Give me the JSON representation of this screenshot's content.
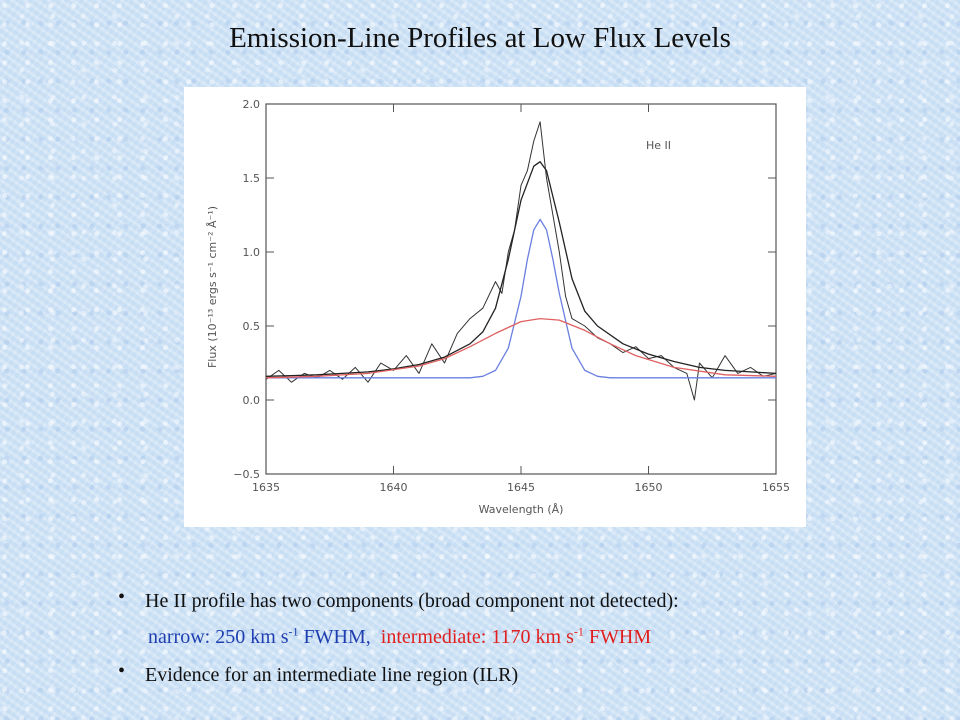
{
  "title": "Emission-Line  Profiles at Low Flux Levels",
  "chart_data": {
    "type": "line",
    "xlabel": "Wavelength (Å)",
    "ylabel": "Flux (10⁻¹³ ergs s⁻¹ cm⁻² Å⁻¹)",
    "annotation": "He II",
    "xlim": [
      1635,
      1655
    ],
    "ylim": [
      -0.5,
      2.0
    ],
    "xticks": [
      1635,
      1640,
      1645,
      1650,
      1655
    ],
    "yticks": [
      -0.5,
      0.0,
      0.5,
      1.0,
      1.5,
      2.0
    ],
    "ytick_labels": [
      "−0.5",
      "0.0",
      "0.5",
      "1.0",
      "1.5",
      "2.0"
    ],
    "series": [
      {
        "color": "#333333",
        "x": [
          1635.0,
          1635.5,
          1636.0,
          1636.5,
          1637.0,
          1637.5,
          1638.0,
          1638.5,
          1639.0,
          1639.5,
          1640.0,
          1640.5,
          1641.0,
          1641.5,
          1642.0,
          1642.5,
          1643.0,
          1643.5,
          1644.0,
          1644.25,
          1644.5,
          1644.75,
          1645.0,
          1645.25,
          1645.5,
          1645.75,
          1646.0,
          1646.25,
          1646.5,
          1646.75,
          1647.0,
          1647.5,
          1648.0,
          1648.5,
          1649.0,
          1649.5,
          1650.0,
          1650.5,
          1651.0,
          1651.5,
          1651.8,
          1652.0,
          1652.5,
          1653.0,
          1653.5,
          1654.0,
          1654.5,
          1655.0
        ],
        "values": [
          0.14,
          0.2,
          0.12,
          0.18,
          0.15,
          0.2,
          0.14,
          0.22,
          0.12,
          0.25,
          0.2,
          0.3,
          0.18,
          0.38,
          0.25,
          0.45,
          0.55,
          0.62,
          0.8,
          0.72,
          1.0,
          1.15,
          1.45,
          1.55,
          1.75,
          1.88,
          1.5,
          1.25,
          1.0,
          0.7,
          0.55,
          0.5,
          0.42,
          0.38,
          0.32,
          0.36,
          0.28,
          0.3,
          0.22,
          0.18,
          0.0,
          0.25,
          0.15,
          0.3,
          0.18,
          0.22,
          0.16,
          0.18
        ]
      },
      {
        "color": "#222222",
        "x": [
          1635,
          1636,
          1637,
          1638,
          1639,
          1640,
          1641,
          1642,
          1643,
          1643.5,
          1644,
          1644.5,
          1645,
          1645.5,
          1645.75,
          1646,
          1646.5,
          1647,
          1647.5,
          1648,
          1649,
          1650,
          1651,
          1652,
          1653,
          1654,
          1655
        ],
        "values": [
          0.16,
          0.165,
          0.17,
          0.18,
          0.19,
          0.21,
          0.24,
          0.29,
          0.38,
          0.46,
          0.62,
          0.95,
          1.35,
          1.58,
          1.61,
          1.55,
          1.2,
          0.82,
          0.6,
          0.5,
          0.38,
          0.31,
          0.26,
          0.22,
          0.2,
          0.19,
          0.18
        ]
      },
      {
        "color": "#6a7fe0",
        "x": [
          1635,
          1643,
          1643.5,
          1644,
          1644.5,
          1645,
          1645.25,
          1645.5,
          1645.75,
          1646,
          1646.25,
          1646.5,
          1647,
          1647.5,
          1648,
          1648.5,
          1655
        ],
        "values": [
          0.15,
          0.15,
          0.16,
          0.2,
          0.35,
          0.7,
          0.95,
          1.15,
          1.22,
          1.15,
          0.95,
          0.72,
          0.35,
          0.2,
          0.16,
          0.15,
          0.15
        ]
      },
      {
        "color": "#e06060",
        "x": [
          1635,
          1637,
          1639,
          1641,
          1642,
          1643,
          1644,
          1645,
          1645.75,
          1646.5,
          1647.5,
          1648.5,
          1649.5,
          1651,
          1653,
          1655
        ],
        "values": [
          0.15,
          0.16,
          0.18,
          0.23,
          0.28,
          0.36,
          0.45,
          0.53,
          0.55,
          0.54,
          0.47,
          0.38,
          0.3,
          0.22,
          0.17,
          0.16
        ]
      }
    ]
  },
  "bullets": [
    {
      "dot": "•",
      "text": "He II profile has two components (broad component not detected):"
    },
    {
      "dot": "•",
      "text": "Evidence for an intermediate line region (ILR)"
    }
  ],
  "sub_bullet": {
    "narrow_a": "narrow: 250 km s",
    "narrow_sup": "-1",
    "narrow_b": " FWHM,",
    "inter_a": "intermediate: 1170 km s",
    "inter_sup": "-1",
    "inter_b": " FWHM"
  }
}
